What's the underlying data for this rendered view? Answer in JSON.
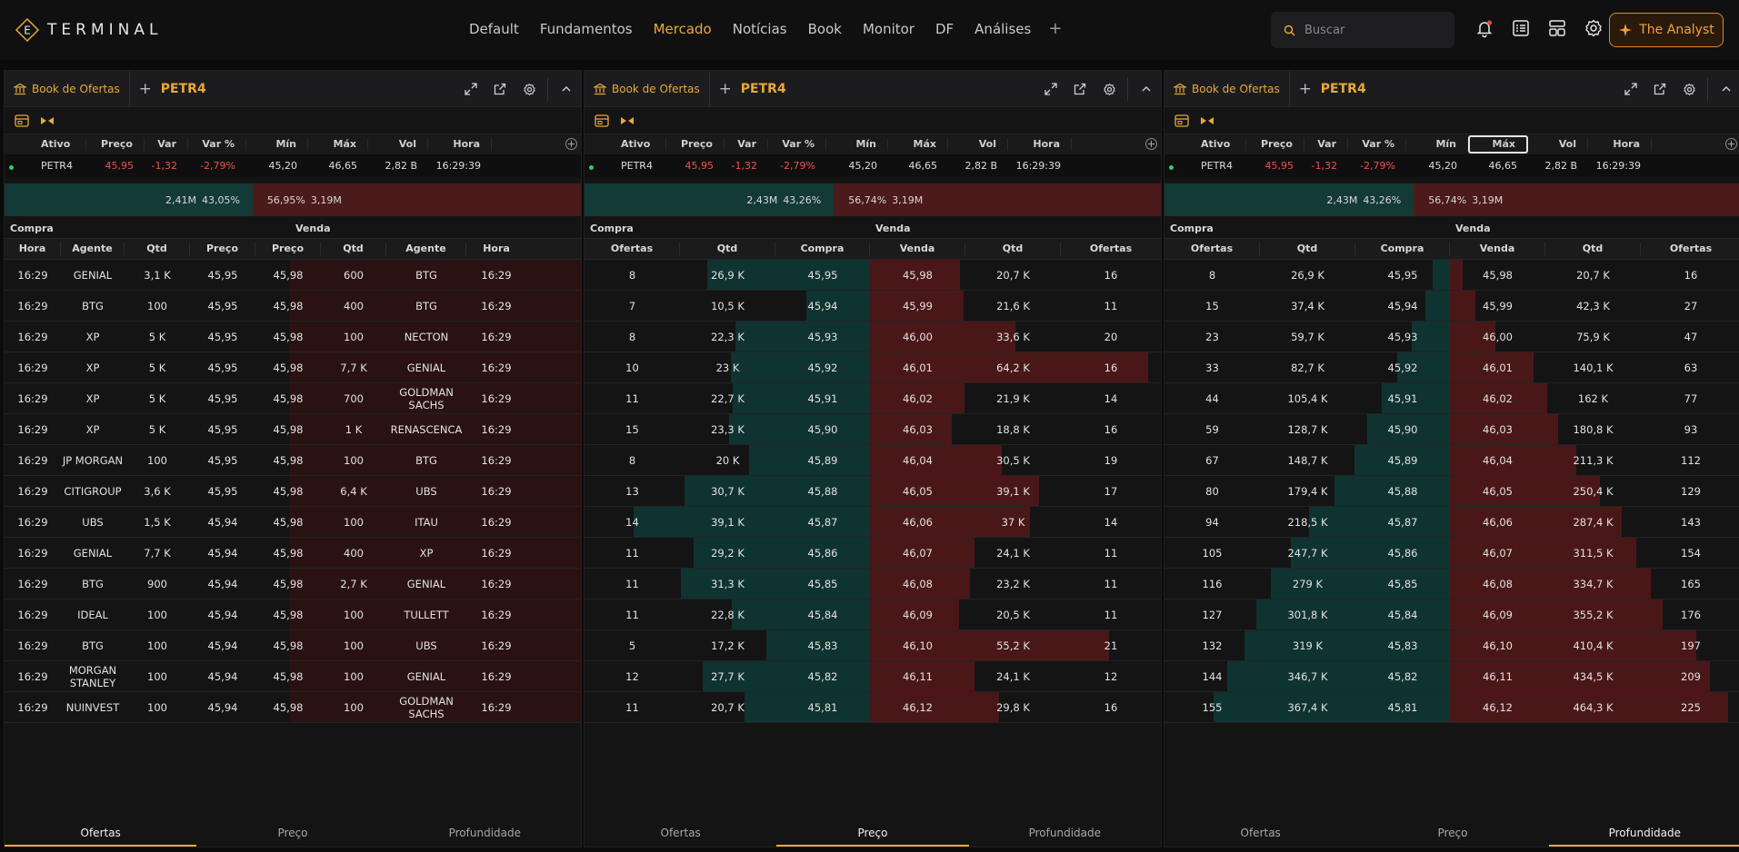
{
  "app": {
    "logo_text": "TERMINAL",
    "accent": "#e8a93a"
  },
  "nav": {
    "items": [
      "Default",
      "Fundamentos",
      "Mercado",
      "Notícias",
      "Book",
      "Monitor",
      "DF",
      "Análises"
    ],
    "active": "Mercado",
    "plus": "+"
  },
  "search": {
    "placeholder": "Buscar"
  },
  "analyst_button": "The Analyst",
  "quote_headers": [
    "Ativo",
    "Preço",
    "Var",
    "Var %",
    "Mín",
    "Máx",
    "Vol",
    "Hora"
  ],
  "quote": {
    "ativo": "PETR4",
    "preco": "45,95",
    "var": "-1,32",
    "var_pct": "-2,79%",
    "min": "45,20",
    "max": "46,65",
    "vol": "2,82 B",
    "hora": "16:29:39"
  },
  "side_labels": {
    "buy": "Compra",
    "sell": "Venda"
  },
  "tabs": [
    "Ofertas",
    "Preço",
    "Profundidade"
  ],
  "panels": [
    {
      "tab_label": "Book de Ofertas",
      "symbol": "PETR4",
      "active_tab": "Ofertas",
      "ratio": {
        "buy_qty": "2,41M",
        "buy_pct": "43,05%",
        "sell_pct": "56,95%",
        "sell_qty": "3,19M",
        "buy_fraction": 0.4305
      },
      "columns": [
        "Hora",
        "Agente",
        "Qtd",
        "Preço",
        "Preço",
        "Qtd",
        "Agente",
        "Hora"
      ],
      "rows": [
        [
          "16:29",
          "GENIAL",
          "3,1 K",
          "45,95",
          "45,98",
          "600",
          "BTG",
          "16:29"
        ],
        [
          "16:29",
          "BTG",
          "100",
          "45,95",
          "45,98",
          "400",
          "BTG",
          "16:29"
        ],
        [
          "16:29",
          "XP",
          "5 K",
          "45,95",
          "45,98",
          "100",
          "NECTON",
          "16:29"
        ],
        [
          "16:29",
          "XP",
          "5 K",
          "45,95",
          "45,98",
          "7,7 K",
          "GENIAL",
          "16:29"
        ],
        [
          "16:29",
          "XP",
          "5 K",
          "45,95",
          "45,98",
          "700",
          "GOLDMAN SACHS",
          "16:29"
        ],
        [
          "16:29",
          "XP",
          "5 K",
          "45,95",
          "45,98",
          "1 K",
          "RENASCENCA",
          "16:29"
        ],
        [
          "16:29",
          "JP MORGAN",
          "100",
          "45,95",
          "45,98",
          "100",
          "BTG",
          "16:29"
        ],
        [
          "16:29",
          "CITIGROUP",
          "3,6 K",
          "45,95",
          "45,98",
          "6,4 K",
          "UBS",
          "16:29"
        ],
        [
          "16:29",
          "UBS",
          "1,5 K",
          "45,94",
          "45,98",
          "100",
          "ITAU",
          "16:29"
        ],
        [
          "16:29",
          "GENIAL",
          "7,7 K",
          "45,94",
          "45,98",
          "400",
          "XP",
          "16:29"
        ],
        [
          "16:29",
          "BTG",
          "900",
          "45,94",
          "45,98",
          "2,7 K",
          "GENIAL",
          "16:29"
        ],
        [
          "16:29",
          "IDEAL",
          "100",
          "45,94",
          "45,98",
          "100",
          "TULLETT",
          "16:29"
        ],
        [
          "16:29",
          "BTG",
          "100",
          "45,94",
          "45,98",
          "100",
          "UBS",
          "16:29"
        ],
        [
          "16:29",
          "MORGAN STANLEY",
          "100",
          "45,94",
          "45,98",
          "100",
          "GENIAL",
          "16:29"
        ],
        [
          "16:29",
          "NUINVEST",
          "100",
          "45,94",
          "45,98",
          "100",
          "GOLDMAN SACHS",
          "16:29"
        ]
      ]
    },
    {
      "tab_label": "Book de Ofertas",
      "symbol": "PETR4",
      "active_tab": "Preço",
      "ratio": {
        "buy_qty": "2,43M",
        "buy_pct": "43,26%",
        "sell_pct": "56,74%",
        "sell_qty": "3,19M",
        "buy_fraction": 0.4326
      },
      "columns": [
        "Ofertas",
        "Qtd",
        "Compra",
        "Venda",
        "Qtd",
        "Ofertas"
      ],
      "rows": [
        [
          "8",
          "26,9 K",
          "45,95",
          "45,98",
          "20,7 K",
          "16"
        ],
        [
          "7",
          "10,5 K",
          "45,94",
          "45,99",
          "21,6 K",
          "11"
        ],
        [
          "8",
          "22,3 K",
          "45,93",
          "46,00",
          "33,6 K",
          "20"
        ],
        [
          "10",
          "23 K",
          "45,92",
          "46,01",
          "64,2 K",
          "16"
        ],
        [
          "11",
          "22,7 K",
          "45,91",
          "46,02",
          "21,9 K",
          "14"
        ],
        [
          "15",
          "23,3 K",
          "45,90",
          "46,03",
          "18,8 K",
          "16"
        ],
        [
          "8",
          "20 K",
          "45,89",
          "46,04",
          "30,5 K",
          "19"
        ],
        [
          "13",
          "30,7 K",
          "45,88",
          "46,05",
          "39,1 K",
          "17"
        ],
        [
          "14",
          "39,1 K",
          "45,87",
          "46,06",
          "37 K",
          "14"
        ],
        [
          "11",
          "29,2 K",
          "45,86",
          "46,07",
          "24,1 K",
          "11"
        ],
        [
          "11",
          "31,3 K",
          "45,85",
          "46,08",
          "23,2 K",
          "11"
        ],
        [
          "11",
          "22,8 K",
          "45,84",
          "46,09",
          "20,5 K",
          "11"
        ],
        [
          "5",
          "17,2 K",
          "45,83",
          "46,10",
          "55,2 K",
          "21"
        ],
        [
          "12",
          "27,7 K",
          "45,82",
          "46,11",
          "24,1 K",
          "12"
        ],
        [
          "11",
          "20,7 K",
          "45,81",
          "46,12",
          "29,8 K",
          "16"
        ]
      ],
      "buy_levels": [
        0.688,
        0.268,
        0.57,
        0.588,
        0.58,
        0.596,
        0.511,
        0.785,
        1.0,
        0.747,
        0.8,
        0.583,
        0.44,
        0.708,
        0.529
      ],
      "sell_levels": [
        0.322,
        0.336,
        0.523,
        1.0,
        0.341,
        0.293,
        0.475,
        0.609,
        0.576,
        0.375,
        0.361,
        0.319,
        0.86,
        0.375,
        0.464
      ]
    },
    {
      "tab_label": "Book de Ofertas",
      "symbol": "PETR4",
      "active_tab": "Profundidade",
      "ratio": {
        "buy_qty": "2,43M",
        "buy_pct": "43,26%",
        "sell_pct": "56,74%",
        "sell_qty": "3,19M",
        "buy_fraction": 0.4326
      },
      "columns": [
        "Ofertas",
        "Qtd",
        "Compra",
        "Venda",
        "Qtd",
        "Ofertas"
      ],
      "rows": [
        [
          "8",
          "26,9 K",
          "45,95",
          "45,98",
          "20,7 K",
          "16"
        ],
        [
          "15",
          "37,4 K",
          "45,94",
          "45,99",
          "42,3 K",
          "27"
        ],
        [
          "23",
          "59,7 K",
          "45,93",
          "46,00",
          "75,9 K",
          "47"
        ],
        [
          "33",
          "82,7 K",
          "45,92",
          "46,01",
          "140,1 K",
          "63"
        ],
        [
          "44",
          "105,4 K",
          "45,91",
          "46,02",
          "162 K",
          "77"
        ],
        [
          "59",
          "128,7 K",
          "45,90",
          "46,03",
          "180,8 K",
          "93"
        ],
        [
          "67",
          "148,7 K",
          "45,89",
          "46,04",
          "211,3 K",
          "112"
        ],
        [
          "80",
          "179,4 K",
          "45,88",
          "46,05",
          "250,4 K",
          "129"
        ],
        [
          "94",
          "218,5 K",
          "45,87",
          "46,06",
          "287,4 K",
          "143"
        ],
        [
          "105",
          "247,7 K",
          "45,86",
          "46,07",
          "311,5 K",
          "154"
        ],
        [
          "116",
          "279 K",
          "45,85",
          "46,08",
          "334,7 K",
          "165"
        ],
        [
          "127",
          "301,8 K",
          "45,84",
          "46,09",
          "355,2 K",
          "176"
        ],
        [
          "132",
          "319 K",
          "45,83",
          "46,10",
          "410,4 K",
          "197"
        ],
        [
          "144",
          "346,7 K",
          "45,82",
          "46,11",
          "434,5 K",
          "209"
        ],
        [
          "155",
          "367,4 K",
          "45,81",
          "46,12",
          "464,3 K",
          "225"
        ]
      ],
      "buy_levels": [
        0.073,
        0.102,
        0.162,
        0.225,
        0.287,
        0.35,
        0.405,
        0.488,
        0.595,
        0.674,
        0.759,
        0.821,
        0.868,
        0.944,
        1.0
      ],
      "sell_levels": [
        0.045,
        0.091,
        0.163,
        0.302,
        0.349,
        0.389,
        0.455,
        0.539,
        0.619,
        0.671,
        0.721,
        0.765,
        0.884,
        0.936,
        1.0
      ]
    }
  ]
}
